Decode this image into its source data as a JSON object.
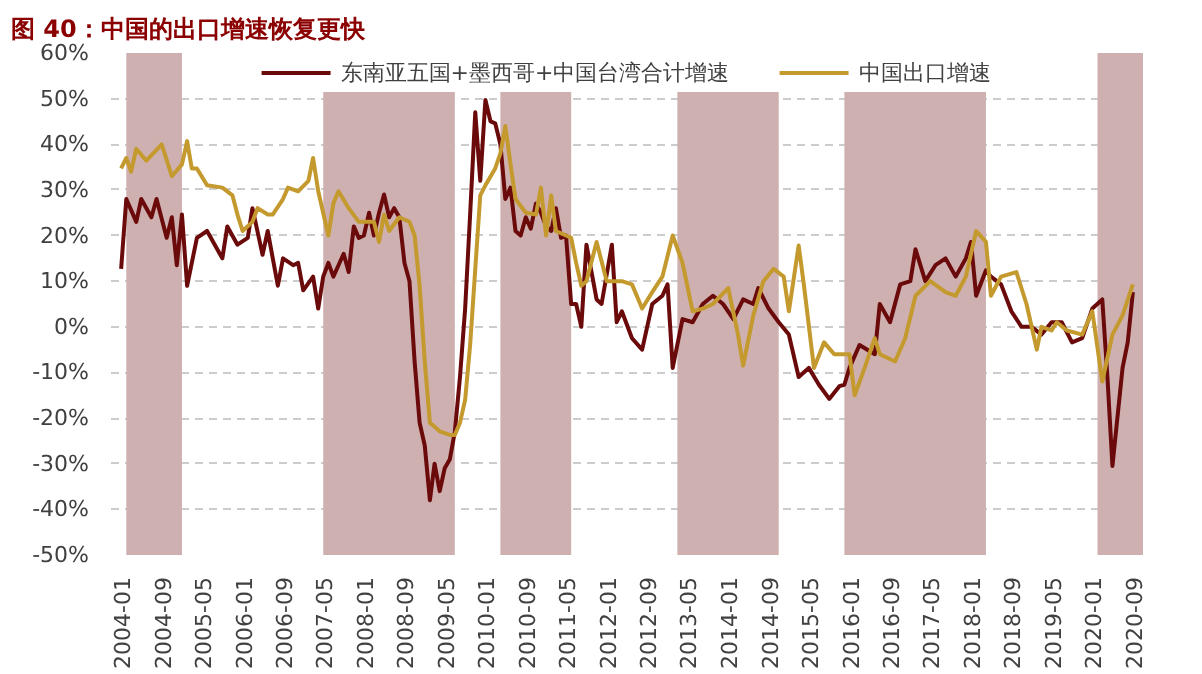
{
  "chart_data": {
    "type": "line",
    "title": "图 40：中国的出口增速恢复更快",
    "xlim": [
      "2003-11",
      "2020-11"
    ],
    "xticks": [
      "2004-01",
      "2004-09",
      "2005-05",
      "2006-01",
      "2006-09",
      "2007-05",
      "2008-01",
      "2008-09",
      "2009-05",
      "2010-01",
      "2010-09",
      "2011-05",
      "2012-01",
      "2012-09",
      "2013-05",
      "2014-01",
      "2014-09",
      "2015-05",
      "2016-01",
      "2016-09",
      "2017-05",
      "2018-01",
      "2018-09",
      "2019-05",
      "2020-01",
      "2020-09"
    ],
    "ylim": [
      -50,
      60
    ],
    "yticks": [
      {
        "value": -50,
        "label": "-50%"
      },
      {
        "value": -40,
        "label": "-40%"
      },
      {
        "value": -30,
        "label": "-30%"
      },
      {
        "value": -20,
        "label": "-20%"
      },
      {
        "value": -10,
        "label": "-10%"
      },
      {
        "value": 0,
        "label": "0%"
      },
      {
        "value": 10,
        "label": "10%"
      },
      {
        "value": 20,
        "label": "20%"
      },
      {
        "value": 30,
        "label": "30%"
      },
      {
        "value": 40,
        "label": "40%"
      },
      {
        "value": 50,
        "label": "50%"
      },
      {
        "value": 60,
        "label": "60%"
      }
    ],
    "grid": "y",
    "legend": "top",
    "line_style": "solid",
    "bands": [
      {
        "axis": "x",
        "from": "2004-02",
        "to": "2005-01",
        "color": "#cfb0b0"
      },
      {
        "axis": "x",
        "from": "2007-05",
        "to": "2009-07",
        "color": "#cfb0b0"
      },
      {
        "axis": "x",
        "from": "2010-04",
        "to": "2011-06",
        "color": "#cfb0b0"
      },
      {
        "axis": "x",
        "from": "2013-03",
        "to": "2014-11",
        "color": "#cfb0b0"
      },
      {
        "axis": "x",
        "from": "2015-12",
        "to": "2018-04",
        "color": "#cfb0b0"
      },
      {
        "axis": "x",
        "from": "2020-02",
        "to": "2020-11",
        "color": "#cfb0b0"
      }
    ],
    "series": [
      {
        "name": "东南亚五国+墨西哥+中国台湾合计增速",
        "color": "#6b0a0a",
        "x": [
          "2004-01",
          "2004-02",
          "2004-04",
          "2004-05",
          "2004-07",
          "2004-08",
          "2004-10",
          "2004-11",
          "2004-12",
          "2005-01",
          "2005-02",
          "2005-04",
          "2005-06",
          "2005-09",
          "2005-10",
          "2005-12",
          "2006-02",
          "2006-03",
          "2006-05",
          "2006-06",
          "2006-08",
          "2006-09",
          "2006-11",
          "2006-12",
          "2007-01",
          "2007-03",
          "2007-04",
          "2007-05",
          "2007-06",
          "2007-07",
          "2007-08",
          "2007-09",
          "2007-10",
          "2007-11",
          "2007-12",
          "2008-01",
          "2008-02",
          "2008-03",
          "2008-04",
          "2008-05",
          "2008-06",
          "2008-07",
          "2008-08",
          "2008-09",
          "2008-10",
          "2008-11",
          "2008-12",
          "2009-01",
          "2009-02",
          "2009-03",
          "2009-04",
          "2009-05",
          "2009-06",
          "2009-07",
          "2009-08",
          "2009-09",
          "2009-10",
          "2009-11",
          "2009-12",
          "2010-01",
          "2010-02",
          "2010-03",
          "2010-04",
          "2010-05",
          "2010-06",
          "2010-07",
          "2010-08",
          "2010-09",
          "2010-10",
          "2010-11",
          "2010-12",
          "2011-01",
          "2011-02",
          "2011-03",
          "2011-04",
          "2011-05",
          "2011-06",
          "2011-07",
          "2011-08",
          "2011-09",
          "2011-11",
          "2011-12",
          "2012-02",
          "2012-03",
          "2012-04",
          "2012-06",
          "2012-08",
          "2012-10",
          "2012-12",
          "2013-01",
          "2013-02",
          "2013-04",
          "2013-06",
          "2013-08",
          "2013-10",
          "2013-12",
          "2014-02",
          "2014-04",
          "2014-06",
          "2014-07",
          "2014-09",
          "2014-11",
          "2015-01",
          "2015-03",
          "2015-05",
          "2015-07",
          "2015-09",
          "2015-11",
          "2015-12",
          "2016-01",
          "2016-03",
          "2016-06",
          "2016-07",
          "2016-09",
          "2016-11",
          "2017-01",
          "2017-02",
          "2017-04",
          "2017-06",
          "2017-08",
          "2017-10",
          "2017-12",
          "2018-01",
          "2018-02",
          "2018-04",
          "2018-05",
          "2018-07",
          "2018-09",
          "2018-11",
          "2019-01",
          "2019-03",
          "2019-05",
          "2019-07",
          "2019-09",
          "2019-11",
          "2020-01",
          "2020-03",
          "2020-04",
          "2020-05",
          "2020-07",
          "2020-08",
          "2020-09"
        ],
        "values": [
          12.7,
          28,
          23,
          28,
          24,
          28,
          19.5,
          24,
          13.5,
          24.6,
          9,
          19.5,
          21,
          15,
          22,
          18,
          19.5,
          26,
          15.8,
          21,
          9,
          15,
          13.5,
          14,
          8,
          11,
          4,
          11,
          14,
          11,
          13.5,
          16,
          12,
          22,
          19.5,
          20,
          25,
          20,
          25,
          29,
          24,
          26,
          24,
          14,
          10,
          -7.6,
          -21,
          -26,
          -38,
          -30,
          -36,
          -31,
          -29,
          -23,
          -11,
          4,
          24.6,
          47,
          32,
          49.7,
          45,
          44.6,
          40,
          28,
          30.5,
          21,
          20,
          24,
          21.5,
          27,
          25,
          22,
          21,
          26,
          19.5,
          20,
          5,
          5,
          0,
          18,
          6,
          5,
          18,
          1,
          3.4,
          -2.5,
          -5,
          5,
          6.8,
          9.3,
          -9,
          1.7,
          1,
          5,
          6.8,
          5,
          1.7,
          6,
          5,
          8.5,
          4,
          1,
          -1.7,
          -11,
          -9,
          -12.7,
          -15.8,
          -13,
          -12.7,
          -9,
          -4,
          -6,
          5,
          1,
          9.3,
          10,
          17,
          10,
          13.5,
          15,
          11,
          15,
          18.6,
          6.8,
          12.4,
          11,
          9.3,
          3.4,
          0,
          0,
          -1.7,
          1,
          1,
          -3.4,
          -2.5,
          4,
          6,
          -11,
          -30.5,
          -9,
          -3.4,
          7.6
        ]
      },
      {
        "name": "中国出口增速",
        "color": "#c49a2e",
        "x": [
          "2004-01",
          "2004-02",
          "2004-03",
          "2004-04",
          "2004-06",
          "2004-09",
          "2004-11",
          "2005-01",
          "2005-02",
          "2005-03",
          "2005-04",
          "2005-06",
          "2005-09",
          "2005-11",
          "2005-12",
          "2006-01",
          "2006-03",
          "2006-04",
          "2006-06",
          "2006-07",
          "2006-09",
          "2006-10",
          "2006-12",
          "2007-02",
          "2007-03",
          "2007-04",
          "2007-06",
          "2007-07",
          "2007-08",
          "2007-10",
          "2007-12",
          "2008-02",
          "2008-03",
          "2008-04",
          "2008-05",
          "2008-06",
          "2008-08",
          "2008-10",
          "2008-11",
          "2008-12",
          "2009-01",
          "2009-02",
          "2009-04",
          "2009-06",
          "2009-07",
          "2009-08",
          "2009-09",
          "2009-10",
          "2009-11",
          "2009-12",
          "2010-01",
          "2010-03",
          "2010-04",
          "2010-05",
          "2010-06",
          "2010-07",
          "2010-09",
          "2010-11",
          "2010-12",
          "2011-01",
          "2011-02",
          "2011-03",
          "2011-05",
          "2011-06",
          "2011-07",
          "2011-08",
          "2011-09",
          "2011-11",
          "2012-01",
          "2012-04",
          "2012-06",
          "2012-08",
          "2012-10",
          "2012-12",
          "2013-02",
          "2013-04",
          "2013-06",
          "2013-08",
          "2013-10",
          "2014-01",
          "2014-03",
          "2014-04",
          "2014-06",
          "2014-08",
          "2014-10",
          "2014-12",
          "2015-01",
          "2015-03",
          "2015-04",
          "2015-06",
          "2015-08",
          "2015-10",
          "2016-01",
          "2016-02",
          "2016-04",
          "2016-06",
          "2016-07",
          "2016-10",
          "2016-12",
          "2017-02",
          "2017-05",
          "2017-08",
          "2017-10",
          "2017-12",
          "2018-02",
          "2018-04",
          "2018-05",
          "2018-07",
          "2018-10",
          "2018-12",
          "2019-02",
          "2019-03",
          "2019-05",
          "2019-06",
          "2019-08",
          "2019-11",
          "2020-01",
          "2020-03",
          "2020-05",
          "2020-07",
          "2020-09"
        ],
        "values": [
          34.7,
          37,
          34,
          39,
          36.4,
          40,
          33,
          35.6,
          40.7,
          34.7,
          34.7,
          31,
          30.5,
          28.8,
          24.6,
          21,
          23,
          26,
          24.6,
          24.6,
          28,
          30.5,
          29.7,
          32,
          37,
          29.7,
          20,
          27,
          29.7,
          26,
          23,
          23,
          23,
          18.6,
          24.6,
          21,
          24,
          23,
          20,
          9,
          -7.6,
          -21,
          -22.9,
          -23.7,
          -23.7,
          -21,
          -16,
          -4,
          12.7,
          28.8,
          31,
          34.7,
          38,
          44,
          35.6,
          28,
          25,
          24.6,
          30.5,
          20,
          28.8,
          21,
          20,
          19.5,
          14,
          9,
          10,
          18.6,
          10,
          10,
          9.3,
          4,
          7.6,
          11,
          20,
          14,
          3.4,
          4,
          5,
          8.5,
          -1.7,
          -8.5,
          2.5,
          10,
          12.7,
          11,
          3.4,
          17.8,
          9.3,
          -9,
          -3.4,
          -6,
          -6,
          -15,
          -9,
          -2.5,
          -6,
          -7.6,
          -2.5,
          6.8,
          10,
          7.6,
          6.8,
          11,
          21,
          18.6,
          6.8,
          11,
          12,
          5,
          -5,
          0,
          -0.8,
          1,
          -0.8,
          -1.7,
          3.4,
          -12,
          -1.7,
          2.5,
          9.3
        ]
      }
    ]
  }
}
